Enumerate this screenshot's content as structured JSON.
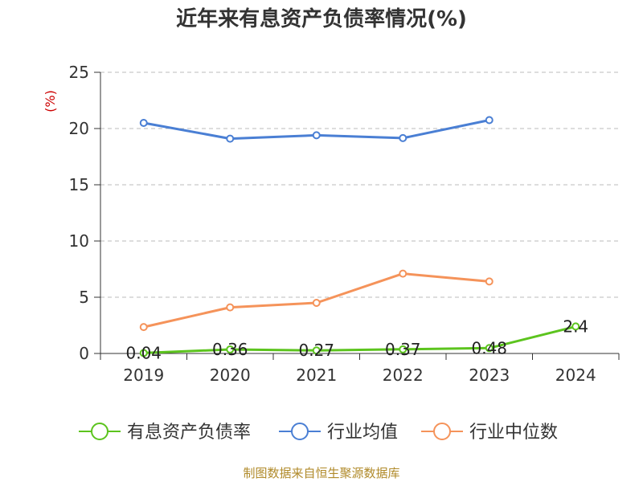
{
  "chart_data": {
    "type": "line",
    "title": "近年来有息资产负债率情况(%)",
    "ylabel": "(%)",
    "categories": [
      "2019",
      "2020",
      "2021",
      "2022",
      "2023",
      "2024"
    ],
    "ylim": [
      0,
      25
    ],
    "yticks": [
      0,
      5,
      10,
      15,
      20,
      25
    ],
    "grid": true,
    "legend_position": "bottom",
    "series": [
      {
        "name": "有息资产负债率",
        "color": "#5cc41e",
        "values": [
          0.04,
          0.36,
          0.27,
          0.37,
          0.48,
          2.4
        ],
        "labels": [
          "0.04",
          "0.36",
          "0.27",
          "0.37",
          "0.48",
          "2.4"
        ]
      },
      {
        "name": "行业均值",
        "color": "#4a7fd4",
        "values": [
          20.5,
          19.1,
          19.4,
          19.15,
          20.75,
          null
        ]
      },
      {
        "name": "行业中位数",
        "color": "#f5935a",
        "values": [
          2.35,
          4.1,
          4.5,
          7.1,
          6.4,
          null
        ]
      }
    ]
  },
  "footer": {
    "source": "制图数据来自恒生聚源数据库"
  }
}
